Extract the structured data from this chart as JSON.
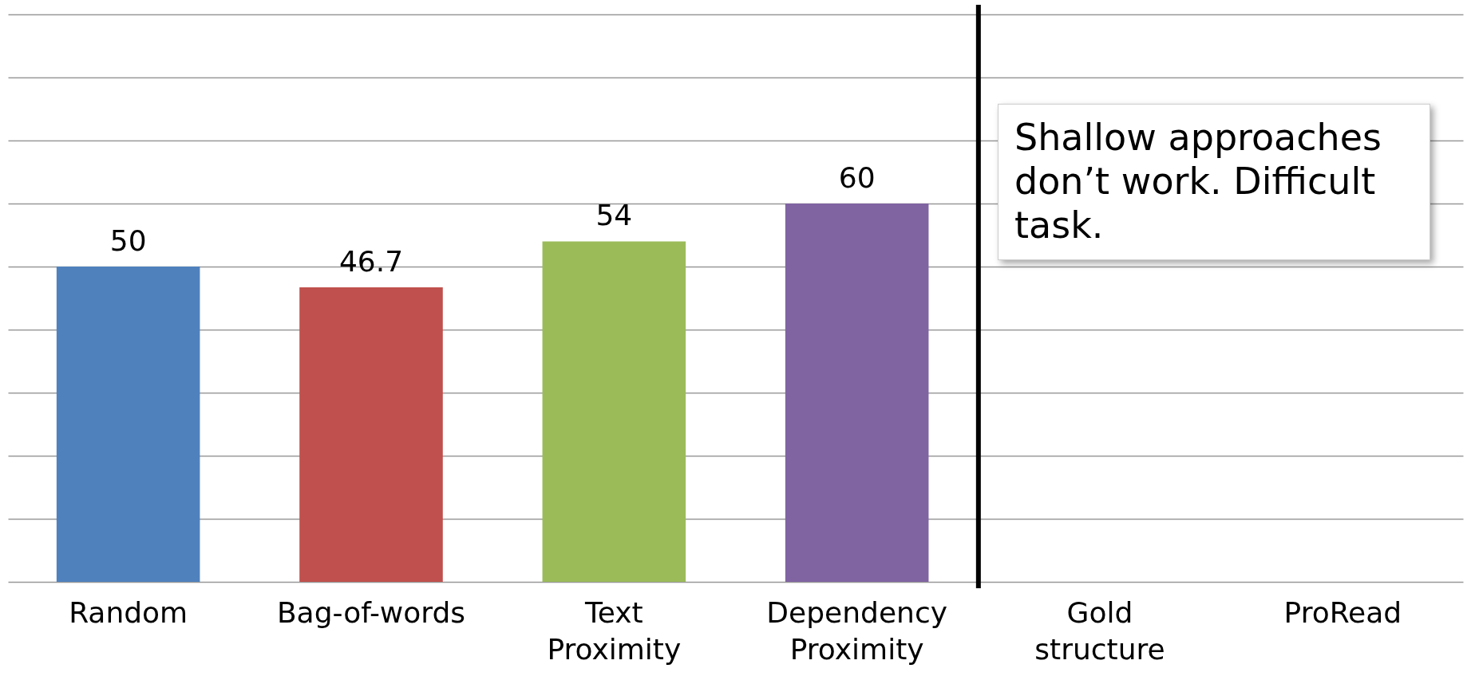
{
  "chart_data": {
    "type": "bar",
    "categories": [
      "Random",
      "Bag-of-words",
      "Text Proximity",
      "Dependency Proximity",
      "Gold structure",
      "ProRead"
    ],
    "values": [
      50,
      46.7,
      54,
      60,
      null,
      null
    ],
    "colors": [
      "#4f81bd",
      "#c0504d",
      "#9bbb59",
      "#8064a2",
      "#000000",
      "#000000"
    ],
    "ylim": [
      0,
      90
    ],
    "yticks": [
      0,
      10,
      20,
      30,
      40,
      50,
      60,
      70,
      80,
      90
    ],
    "ref_lines": [
      {
        "axis": "x",
        "value": "Gold structure",
        "color": "#000000"
      }
    ],
    "grid": "y",
    "tick_labels": "x",
    "data_labels": true,
    "annotations": [
      "Shallow approaches don’t work. Difficult task."
    ]
  }
}
